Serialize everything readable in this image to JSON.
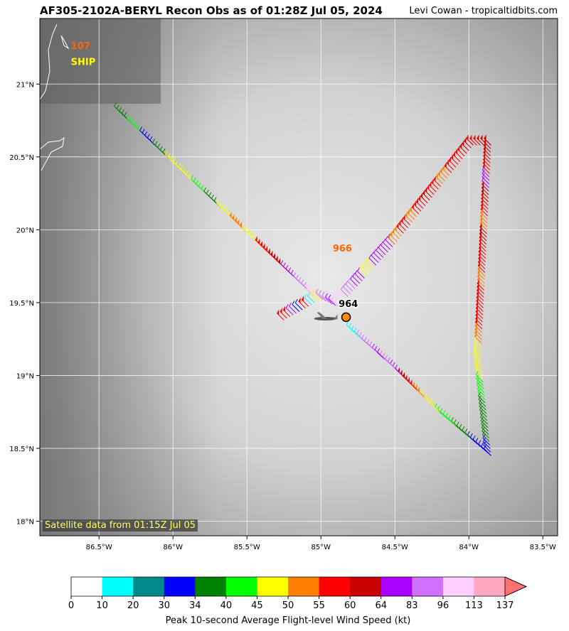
{
  "header": {
    "title": "AF305-2102A-BERYL Recon Obs as of 01:28Z Jul 05, 2024",
    "credit": "Levi Cowan - tropicaltidbits.com"
  },
  "map": {
    "lon_range": [
      -86.9,
      -83.4
    ],
    "lat_range": [
      17.9,
      21.45
    ],
    "lon_ticks": [
      -86.5,
      -86.0,
      -85.5,
      -85.0,
      -84.5,
      -84.0,
      -83.5
    ],
    "lon_tick_labels": [
      "86.5°W",
      "86°W",
      "85.5°W",
      "85°W",
      "84.5°W",
      "84°W",
      "83.5°W"
    ],
    "lat_ticks": [
      18.0,
      18.5,
      19.0,
      19.5,
      20.0,
      20.5,
      21.0
    ],
    "lat_tick_labels": [
      "18°N",
      "18.5°N",
      "19°N",
      "19.5°N",
      "20°N",
      "20.5°N",
      "21°N"
    ],
    "grid": true,
    "satellite_label": "Satellite data from 01:15Z Jul 05",
    "annotations": [
      {
        "text": "107",
        "lon": -86.69,
        "lat": 21.24,
        "color": "#ff6600"
      },
      {
        "text": "SHIP",
        "lon": -86.69,
        "lat": 21.13,
        "color": "#ffff00"
      },
      {
        "text": "966",
        "lon": -84.92,
        "lat": 19.85,
        "color": "#ff6600"
      },
      {
        "text": "964",
        "lon": -84.88,
        "lat": 19.47,
        "color": "#000000"
      }
    ],
    "center_marker": {
      "lon": -84.83,
      "lat": 19.4,
      "color": "#ff8c00"
    },
    "flight_legs": [
      {
        "from": [
          -86.35,
          20.8
        ],
        "to": [
          -85.05,
          19.55
        ],
        "colors": [
          "#008000",
          "#00ff00",
          "#0000ff",
          "#008000",
          "#ffff00",
          "#ffff00",
          "#00ff00",
          "#008000",
          "#ffff00",
          "#ff7f00",
          "#ffff00",
          "#ff0000",
          "#c80000",
          "#aa00ff",
          "#d070ff"
        ]
      },
      {
        "from": [
          -85.05,
          19.55
        ],
        "to": [
          -84.88,
          19.47
        ],
        "colors": [
          "#ffd0ff",
          "#d070ff",
          "#aa00ff"
        ]
      },
      {
        "from": [
          -84.88,
          19.47
        ],
        "to": [
          -84.5,
          19.9
        ],
        "colors": [
          "#ffd0ff",
          "#d070ff",
          "#aa00ff",
          "#ffff00",
          "#aa00ff",
          "#aa00ff"
        ]
      },
      {
        "from": [
          -84.5,
          19.9
        ],
        "to": [
          -83.97,
          20.58
        ],
        "colors": [
          "#ff7f00",
          "#ff0000",
          "#ff7f00",
          "#ff0000",
          "#c80000",
          "#ff0000",
          "#ff7f00",
          "#ff0000",
          "#ff0000",
          "#c80000"
        ]
      },
      {
        "from": [
          -83.97,
          20.58
        ],
        "to": [
          -83.85,
          20.58
        ],
        "colors": [
          "#ff0000",
          "#c80000"
        ]
      },
      {
        "from": [
          -83.85,
          20.58
        ],
        "to": [
          -83.92,
          19.1
        ],
        "colors": [
          "#c80000",
          "#ff0000",
          "#aa00ff",
          "#c80000",
          "#ff0000",
          "#ff7f00",
          "#c80000",
          "#ff0000",
          "#ff0000",
          "#ff7f00",
          "#ff0000",
          "#ff0000",
          "#ff0000",
          "#ff7f00",
          "#ffff00"
        ]
      },
      {
        "from": [
          -83.92,
          19.1
        ],
        "to": [
          -83.85,
          18.45
        ],
        "colors": [
          "#ffff00",
          "#ffff00",
          "#00ff00",
          "#00ff00",
          "#008000",
          "#008000",
          "#008000",
          "#008000",
          "#0000ff"
        ]
      },
      {
        "from": [
          -83.85,
          18.45
        ],
        "to": [
          -84.2,
          18.75
        ],
        "colors": [
          "#0000ff",
          "#0000ff",
          "#008000",
          "#008800",
          "#00ff00",
          "#00ff00"
        ]
      },
      {
        "from": [
          -84.2,
          18.75
        ],
        "to": [
          -84.5,
          19.05
        ],
        "colors": [
          "#ffff00",
          "#ffff00",
          "#ff7f00",
          "#ff0000",
          "#c80000",
          "#aa00ff"
        ]
      },
      {
        "from": [
          -84.5,
          19.05
        ],
        "to": [
          -84.78,
          19.3
        ],
        "colors": [
          "#d070ff",
          "#aa00ff",
          "#d070ff",
          "#d070ff",
          "#00ffff"
        ]
      },
      {
        "from": [
          -85.0,
          19.52
        ],
        "to": [
          -85.25,
          19.38
        ],
        "colors": [
          "#ffff00",
          "#00ffff",
          "#ff0000",
          "#0000ff",
          "#aa00ff",
          "#ff0000"
        ]
      }
    ]
  },
  "colorbar": {
    "title": "Peak 10-second Average Flight-level Wind Speed (kt)",
    "ticks": [
      "0",
      "10",
      "20",
      "30",
      "34",
      "40",
      "45",
      "50",
      "55",
      "60",
      "64",
      "83",
      "96",
      "113",
      "137"
    ],
    "colors": [
      "#ffffff",
      "#00ffff",
      "#008b8b",
      "#0000ff",
      "#008000",
      "#00ff00",
      "#ffff00",
      "#ff7f00",
      "#ff0000",
      "#c80000",
      "#aa00ff",
      "#d070ff",
      "#ffd0ff",
      "#ffa8c0"
    ],
    "extend_color": "#ff7070"
  }
}
